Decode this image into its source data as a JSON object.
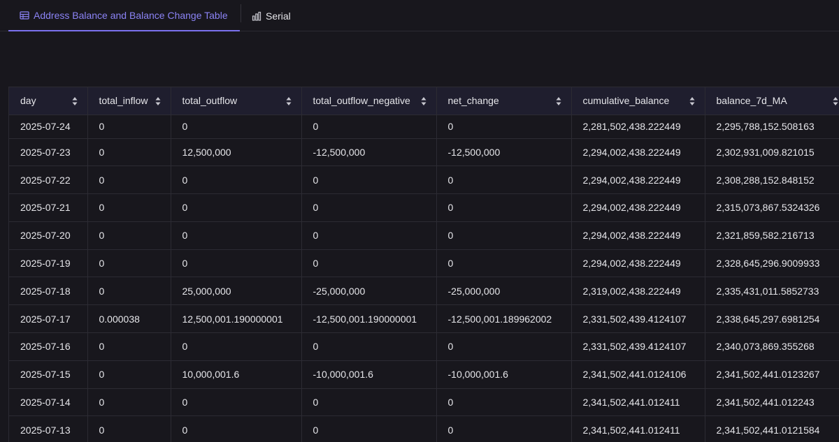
{
  "tabs": [
    {
      "label": "Address Balance and Balance Change Table",
      "icon": "table-icon",
      "active": true
    },
    {
      "label": "Serial",
      "icon": "bar-chart-icon",
      "active": false
    }
  ],
  "colors": {
    "background": "#18171d",
    "accent": "#7b72ee",
    "header_bg": "#1f1e2e"
  },
  "table": {
    "columns": [
      "day",
      "total_inflow",
      "total_outflow",
      "total_outflow_negative",
      "net_change",
      "cumulative_balance",
      "balance_7d_MA"
    ],
    "rows": [
      [
        "2025-07-24",
        "0",
        "0",
        "0",
        "0",
        "2,281,502,438.222449",
        "2,295,788,152.508163"
      ],
      [
        "2025-07-23",
        "0",
        "12,500,000",
        "-12,500,000",
        "-12,500,000",
        "2,294,002,438.222449",
        "2,302,931,009.821015"
      ],
      [
        "2025-07-22",
        "0",
        "0",
        "0",
        "0",
        "2,294,002,438.222449",
        "2,308,288,152.848152"
      ],
      [
        "2025-07-21",
        "0",
        "0",
        "0",
        "0",
        "2,294,002,438.222449",
        "2,315,073,867.5324326"
      ],
      [
        "2025-07-20",
        "0",
        "0",
        "0",
        "0",
        "2,294,002,438.222449",
        "2,321,859,582.216713"
      ],
      [
        "2025-07-19",
        "0",
        "0",
        "0",
        "0",
        "2,294,002,438.222449",
        "2,328,645,296.9009933"
      ],
      [
        "2025-07-18",
        "0",
        "25,000,000",
        "-25,000,000",
        "-25,000,000",
        "2,319,002,438.222449",
        "2,335,431,011.5852733"
      ],
      [
        "2025-07-17",
        "0.000038",
        "12,500,001.190000001",
        "-12,500,001.190000001",
        "-12,500,001.189962002",
        "2,331,502,439.4124107",
        "2,338,645,297.6981254"
      ],
      [
        "2025-07-16",
        "0",
        "0",
        "0",
        "0",
        "2,331,502,439.4124107",
        "2,340,073,869.355268"
      ],
      [
        "2025-07-15",
        "0",
        "10,000,001.6",
        "-10,000,001.6",
        "-10,000,001.6",
        "2,341,502,441.0124106",
        "2,341,502,441.0123267"
      ],
      [
        "2025-07-14",
        "0",
        "0",
        "0",
        "0",
        "2,341,502,441.012411",
        "2,341,502,441.012243"
      ],
      [
        "2025-07-13",
        "0",
        "0",
        "0",
        "0",
        "2,341,502,441.012411",
        "2,341,502,441.0121584"
      ]
    ]
  }
}
